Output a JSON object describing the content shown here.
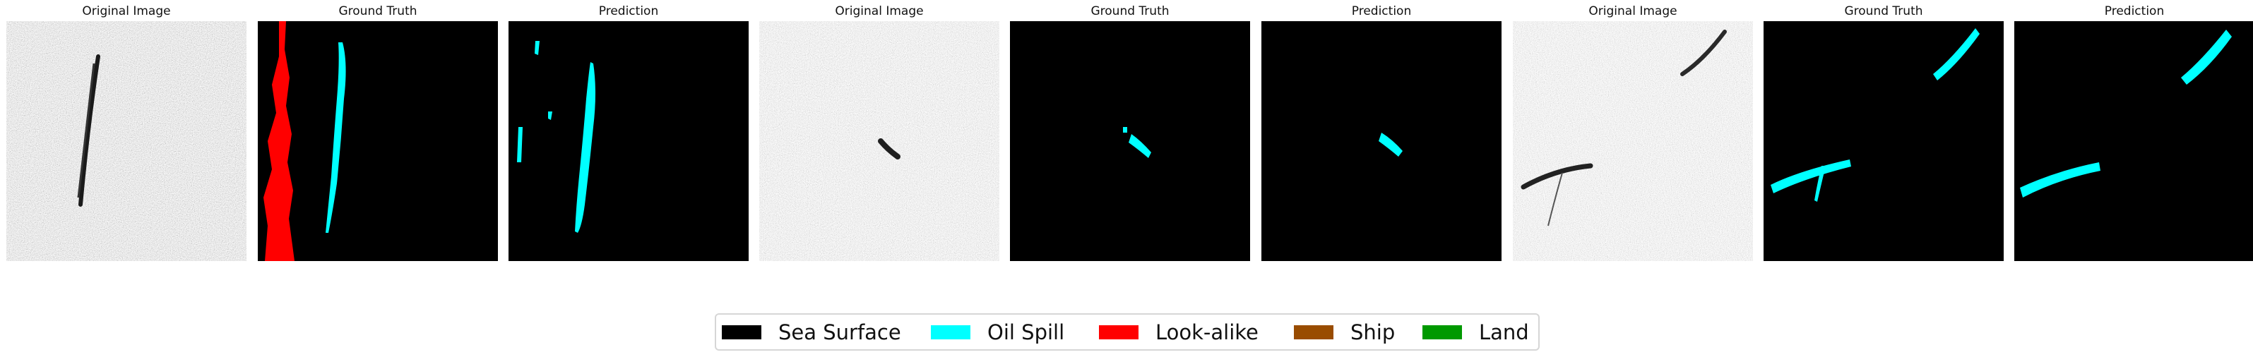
{
  "panels": [
    {
      "title": "Original Image"
    },
    {
      "title": "Ground Truth"
    },
    {
      "title": "Prediction"
    },
    {
      "title": "Original Image"
    },
    {
      "title": "Ground Truth"
    },
    {
      "title": "Prediction"
    },
    {
      "title": "Original Image"
    },
    {
      "title": "Ground Truth"
    },
    {
      "title": "Prediction"
    }
  ],
  "legend": [
    {
      "label": "Sea Surface",
      "color": "#000000"
    },
    {
      "label": "Oil Spill",
      "color": "#00ffff"
    },
    {
      "label": "Look-alike",
      "color": "#ff0000"
    },
    {
      "label": "Ship",
      "color": "#994c00"
    },
    {
      "label": "Land",
      "color": "#009900"
    }
  ]
}
